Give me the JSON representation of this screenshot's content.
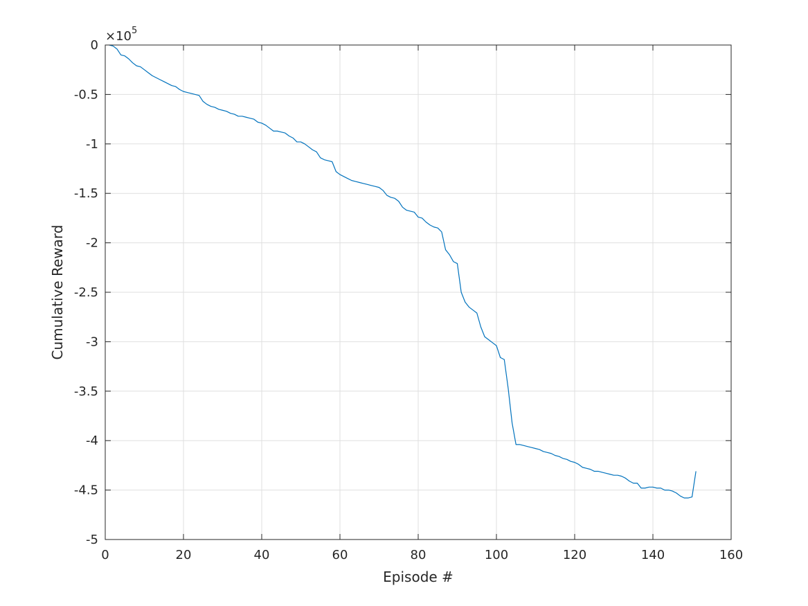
{
  "chart_data": {
    "type": "line",
    "title": "",
    "xlabel": "Episode #",
    "ylabel": "Cumulative Reward",
    "y_exponent_label": {
      "times": "×10",
      "power": "5"
    },
    "xlim": [
      0,
      160
    ],
    "ylim": [
      -5,
      0
    ],
    "x_ticks": [
      0,
      20,
      40,
      60,
      80,
      100,
      120,
      140,
      160
    ],
    "y_ticks": [
      0,
      -0.5,
      -1,
      -1.5,
      -2,
      -2.5,
      -3,
      -3.5,
      -4,
      -4.5,
      -5
    ],
    "y_tick_labels": [
      "0",
      "-0.5",
      "-1",
      "-1.5",
      "-2",
      "-2.5",
      "-3",
      "-3.5",
      "-4",
      "-4.5",
      "-5"
    ],
    "x_tick_labels": [
      "0",
      "20",
      "40",
      "60",
      "80",
      "100",
      "120",
      "140",
      "160"
    ],
    "grid": true,
    "colors": {
      "series": "#0072bd",
      "grid": "#dfdfdf",
      "axis": "#262626"
    },
    "series": [
      {
        "points": [
          [
            1,
            0
          ],
          [
            2,
            -0.01
          ],
          [
            3,
            -0.04
          ],
          [
            4,
            -0.1
          ],
          [
            5,
            -0.11
          ],
          [
            6,
            -0.14
          ],
          [
            7,
            -0.18
          ],
          [
            8,
            -0.21
          ],
          [
            9,
            -0.22
          ],
          [
            10,
            -0.25
          ],
          [
            11,
            -0.28
          ],
          [
            12,
            -0.31
          ],
          [
            13,
            -0.33
          ],
          [
            14,
            -0.35
          ],
          [
            15,
            -0.37
          ],
          [
            16,
            -0.39
          ],
          [
            17,
            -0.41
          ],
          [
            18,
            -0.42
          ],
          [
            19,
            -0.45
          ],
          [
            20,
            -0.47
          ],
          [
            21,
            -0.48
          ],
          [
            22,
            -0.49
          ],
          [
            23,
            -0.5
          ],
          [
            24,
            -0.51
          ],
          [
            25,
            -0.57
          ],
          [
            26,
            -0.6
          ],
          [
            27,
            -0.62
          ],
          [
            28,
            -0.63
          ],
          [
            29,
            -0.65
          ],
          [
            30,
            -0.66
          ],
          [
            31,
            -0.67
          ],
          [
            32,
            -0.69
          ],
          [
            33,
            -0.7
          ],
          [
            34,
            -0.72
          ],
          [
            35,
            -0.72
          ],
          [
            36,
            -0.73
          ],
          [
            37,
            -0.74
          ],
          [
            38,
            -0.75
          ],
          [
            39,
            -0.78
          ],
          [
            40,
            -0.79
          ],
          [
            41,
            -0.81
          ],
          [
            42,
            -0.84
          ],
          [
            43,
            -0.87
          ],
          [
            44,
            -0.87
          ],
          [
            45,
            -0.88
          ],
          [
            46,
            -0.89
          ],
          [
            47,
            -0.92
          ],
          [
            48,
            -0.94
          ],
          [
            49,
            -0.98
          ],
          [
            50,
            -0.98
          ],
          [
            51,
            -1.0
          ],
          [
            52,
            -1.03
          ],
          [
            53,
            -1.06
          ],
          [
            54,
            -1.08
          ],
          [
            55,
            -1.14
          ],
          [
            56,
            -1.16
          ],
          [
            57,
            -1.17
          ],
          [
            58,
            -1.18
          ],
          [
            59,
            -1.28
          ],
          [
            60,
            -1.31
          ],
          [
            61,
            -1.33
          ],
          [
            62,
            -1.35
          ],
          [
            63,
            -1.37
          ],
          [
            64,
            -1.38
          ],
          [
            65,
            -1.39
          ],
          [
            66,
            -1.4
          ],
          [
            67,
            -1.41
          ],
          [
            68,
            -1.42
          ],
          [
            69,
            -1.43
          ],
          [
            70,
            -1.44
          ],
          [
            71,
            -1.47
          ],
          [
            72,
            -1.52
          ],
          [
            73,
            -1.54
          ],
          [
            74,
            -1.55
          ],
          [
            75,
            -1.58
          ],
          [
            76,
            -1.64
          ],
          [
            77,
            -1.67
          ],
          [
            78,
            -1.68
          ],
          [
            79,
            -1.69
          ],
          [
            80,
            -1.74
          ],
          [
            81,
            -1.75
          ],
          [
            82,
            -1.79
          ],
          [
            83,
            -1.82
          ],
          [
            84,
            -1.84
          ],
          [
            85,
            -1.85
          ],
          [
            86,
            -1.89
          ],
          [
            87,
            -2.07
          ],
          [
            88,
            -2.12
          ],
          [
            89,
            -2.19
          ],
          [
            90,
            -2.21
          ],
          [
            91,
            -2.5
          ],
          [
            92,
            -2.6
          ],
          [
            93,
            -2.65
          ],
          [
            94,
            -2.68
          ],
          [
            95,
            -2.71
          ],
          [
            96,
            -2.85
          ],
          [
            97,
            -2.95
          ],
          [
            98,
            -2.98
          ],
          [
            99,
            -3.01
          ],
          [
            100,
            -3.04
          ],
          [
            101,
            -3.16
          ],
          [
            102,
            -3.18
          ],
          [
            103,
            -3.47
          ],
          [
            104,
            -3.82
          ],
          [
            105,
            -4.04
          ],
          [
            106,
            -4.04
          ],
          [
            107,
            -4.05
          ],
          [
            108,
            -4.06
          ],
          [
            109,
            -4.07
          ],
          [
            110,
            -4.08
          ],
          [
            111,
            -4.09
          ],
          [
            112,
            -4.11
          ],
          [
            113,
            -4.12
          ],
          [
            114,
            -4.13
          ],
          [
            115,
            -4.15
          ],
          [
            116,
            -4.16
          ],
          [
            117,
            -4.18
          ],
          [
            118,
            -4.19
          ],
          [
            119,
            -4.21
          ],
          [
            120,
            -4.22
          ],
          [
            121,
            -4.24
          ],
          [
            122,
            -4.27
          ],
          [
            123,
            -4.28
          ],
          [
            124,
            -4.29
          ],
          [
            125,
            -4.31
          ],
          [
            126,
            -4.31
          ],
          [
            127,
            -4.32
          ],
          [
            128,
            -4.33
          ],
          [
            129,
            -4.34
          ],
          [
            130,
            -4.35
          ],
          [
            131,
            -4.35
          ],
          [
            132,
            -4.36
          ],
          [
            133,
            -4.38
          ],
          [
            134,
            -4.41
          ],
          [
            135,
            -4.43
          ],
          [
            136,
            -4.43
          ],
          [
            137,
            -4.48
          ],
          [
            138,
            -4.48
          ],
          [
            139,
            -4.47
          ],
          [
            140,
            -4.47
          ],
          [
            141,
            -4.48
          ],
          [
            142,
            -4.48
          ],
          [
            143,
            -4.5
          ],
          [
            144,
            -4.5
          ],
          [
            145,
            -4.51
          ],
          [
            146,
            -4.53
          ],
          [
            147,
            -4.56
          ],
          [
            148,
            -4.58
          ],
          [
            149,
            -4.58
          ],
          [
            150,
            -4.57
          ],
          [
            151,
            -4.31
          ]
        ]
      }
    ]
  }
}
